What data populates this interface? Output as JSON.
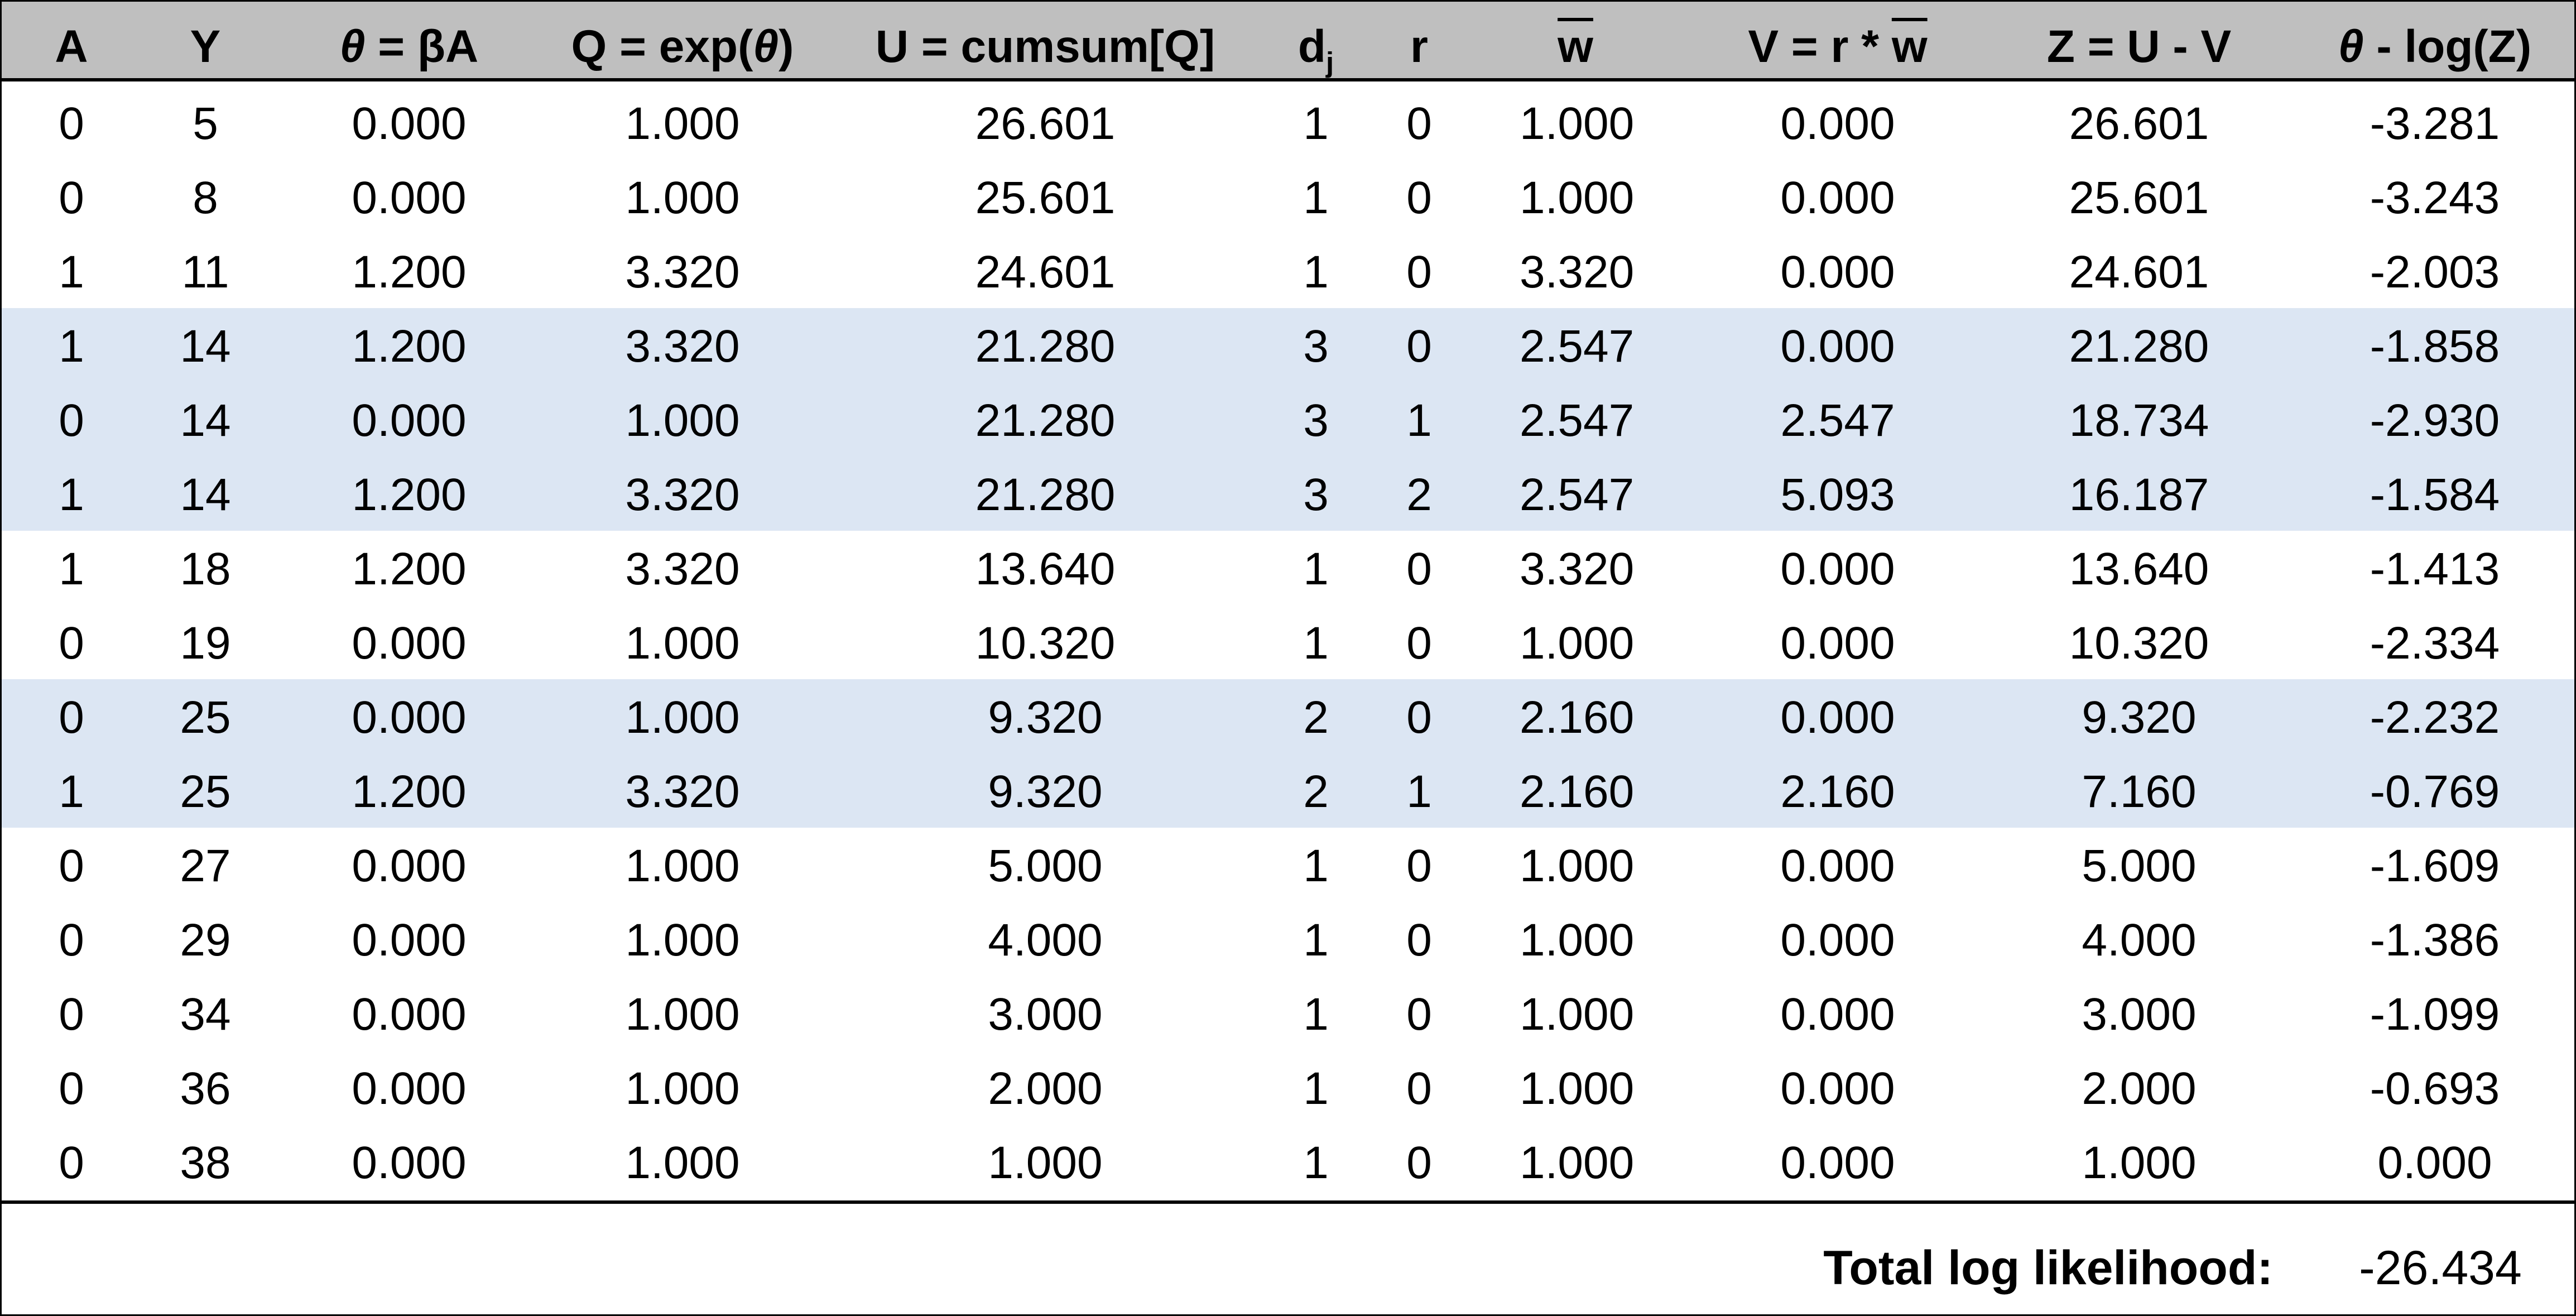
{
  "columns": [
    {
      "key": "A",
      "label": "A"
    },
    {
      "key": "Y",
      "label": "Y"
    },
    {
      "key": "theta",
      "label": "θ = βA"
    },
    {
      "key": "Q",
      "label": "Q = exp(θ)"
    },
    {
      "key": "U",
      "label": "U = cumsum[Q]"
    },
    {
      "key": "dj",
      "label": "dj"
    },
    {
      "key": "r",
      "label": "r"
    },
    {
      "key": "wbar",
      "label": "w"
    },
    {
      "key": "V",
      "label": "V = r * w"
    },
    {
      "key": "Z",
      "label": "Z = U - V"
    },
    {
      "key": "ll",
      "label": "θ - log(Z)"
    }
  ],
  "header_parts": {
    "theta_symbol": "θ",
    "theta_rest": " = βA",
    "q_prefix": "Q = exp(",
    "q_theta": "θ",
    "q_suffix": ")",
    "dj_main": "d",
    "dj_sub": "j",
    "v_prefix": "V = r * ",
    "v_w": "w",
    "ll_theta": "θ",
    "ll_rest": " - log(Z)"
  },
  "rows": [
    {
      "A": "0",
      "Y": "5",
      "theta": "0.000",
      "Q": "1.000",
      "U": "26.601",
      "dj": "1",
      "r": "0",
      "wbar": "1.000",
      "V": "0.000",
      "Z": "26.601",
      "ll": "-3.281",
      "shaded": false
    },
    {
      "A": "0",
      "Y": "8",
      "theta": "0.000",
      "Q": "1.000",
      "U": "25.601",
      "dj": "1",
      "r": "0",
      "wbar": "1.000",
      "V": "0.000",
      "Z": "25.601",
      "ll": "-3.243",
      "shaded": false
    },
    {
      "A": "1",
      "Y": "11",
      "theta": "1.200",
      "Q": "3.320",
      "U": "24.601",
      "dj": "1",
      "r": "0",
      "wbar": "3.320",
      "V": "0.000",
      "Z": "24.601",
      "ll": "-2.003",
      "shaded": false
    },
    {
      "A": "1",
      "Y": "14",
      "theta": "1.200",
      "Q": "3.320",
      "U": "21.280",
      "dj": "3",
      "r": "0",
      "wbar": "2.547",
      "V": "0.000",
      "Z": "21.280",
      "ll": "-1.858",
      "shaded": true
    },
    {
      "A": "0",
      "Y": "14",
      "theta": "0.000",
      "Q": "1.000",
      "U": "21.280",
      "dj": "3",
      "r": "1",
      "wbar": "2.547",
      "V": "2.547",
      "Z": "18.734",
      "ll": "-2.930",
      "shaded": true
    },
    {
      "A": "1",
      "Y": "14",
      "theta": "1.200",
      "Q": "3.320",
      "U": "21.280",
      "dj": "3",
      "r": "2",
      "wbar": "2.547",
      "V": "5.093",
      "Z": "16.187",
      "ll": "-1.584",
      "shaded": true
    },
    {
      "A": "1",
      "Y": "18",
      "theta": "1.200",
      "Q": "3.320",
      "U": "13.640",
      "dj": "1",
      "r": "0",
      "wbar": "3.320",
      "V": "0.000",
      "Z": "13.640",
      "ll": "-1.413",
      "shaded": false
    },
    {
      "A": "0",
      "Y": "19",
      "theta": "0.000",
      "Q": "1.000",
      "U": "10.320",
      "dj": "1",
      "r": "0",
      "wbar": "1.000",
      "V": "0.000",
      "Z": "10.320",
      "ll": "-2.334",
      "shaded": false
    },
    {
      "A": "0",
      "Y": "25",
      "theta": "0.000",
      "Q": "1.000",
      "U": "9.320",
      "dj": "2",
      "r": "0",
      "wbar": "2.160",
      "V": "0.000",
      "Z": "9.320",
      "ll": "-2.232",
      "shaded": true
    },
    {
      "A": "1",
      "Y": "25",
      "theta": "1.200",
      "Q": "3.320",
      "U": "9.320",
      "dj": "2",
      "r": "1",
      "wbar": "2.160",
      "V": "2.160",
      "Z": "7.160",
      "ll": "-0.769",
      "shaded": true
    },
    {
      "A": "0",
      "Y": "27",
      "theta": "0.000",
      "Q": "1.000",
      "U": "5.000",
      "dj": "1",
      "r": "0",
      "wbar": "1.000",
      "V": "0.000",
      "Z": "5.000",
      "ll": "-1.609",
      "shaded": false
    },
    {
      "A": "0",
      "Y": "29",
      "theta": "0.000",
      "Q": "1.000",
      "U": "4.000",
      "dj": "1",
      "r": "0",
      "wbar": "1.000",
      "V": "0.000",
      "Z": "4.000",
      "ll": "-1.386",
      "shaded": false
    },
    {
      "A": "0",
      "Y": "34",
      "theta": "0.000",
      "Q": "1.000",
      "U": "3.000",
      "dj": "1",
      "r": "0",
      "wbar": "1.000",
      "V": "0.000",
      "Z": "3.000",
      "ll": "-1.099",
      "shaded": false
    },
    {
      "A": "0",
      "Y": "36",
      "theta": "0.000",
      "Q": "1.000",
      "U": "2.000",
      "dj": "1",
      "r": "0",
      "wbar": "1.000",
      "V": "0.000",
      "Z": "2.000",
      "ll": "-0.693",
      "shaded": false
    },
    {
      "A": "0",
      "Y": "38",
      "theta": "0.000",
      "Q": "1.000",
      "U": "1.000",
      "dj": "1",
      "r": "0",
      "wbar": "1.000",
      "V": "0.000",
      "Z": "1.000",
      "ll": "0.000",
      "shaded": false
    }
  ],
  "footer": {
    "label": "Total log likelihood:",
    "value": "-26.434"
  },
  "colors": {
    "header_bg": "#bfbfbf",
    "shade_bg": "#dce6f3",
    "border": "#000000"
  }
}
